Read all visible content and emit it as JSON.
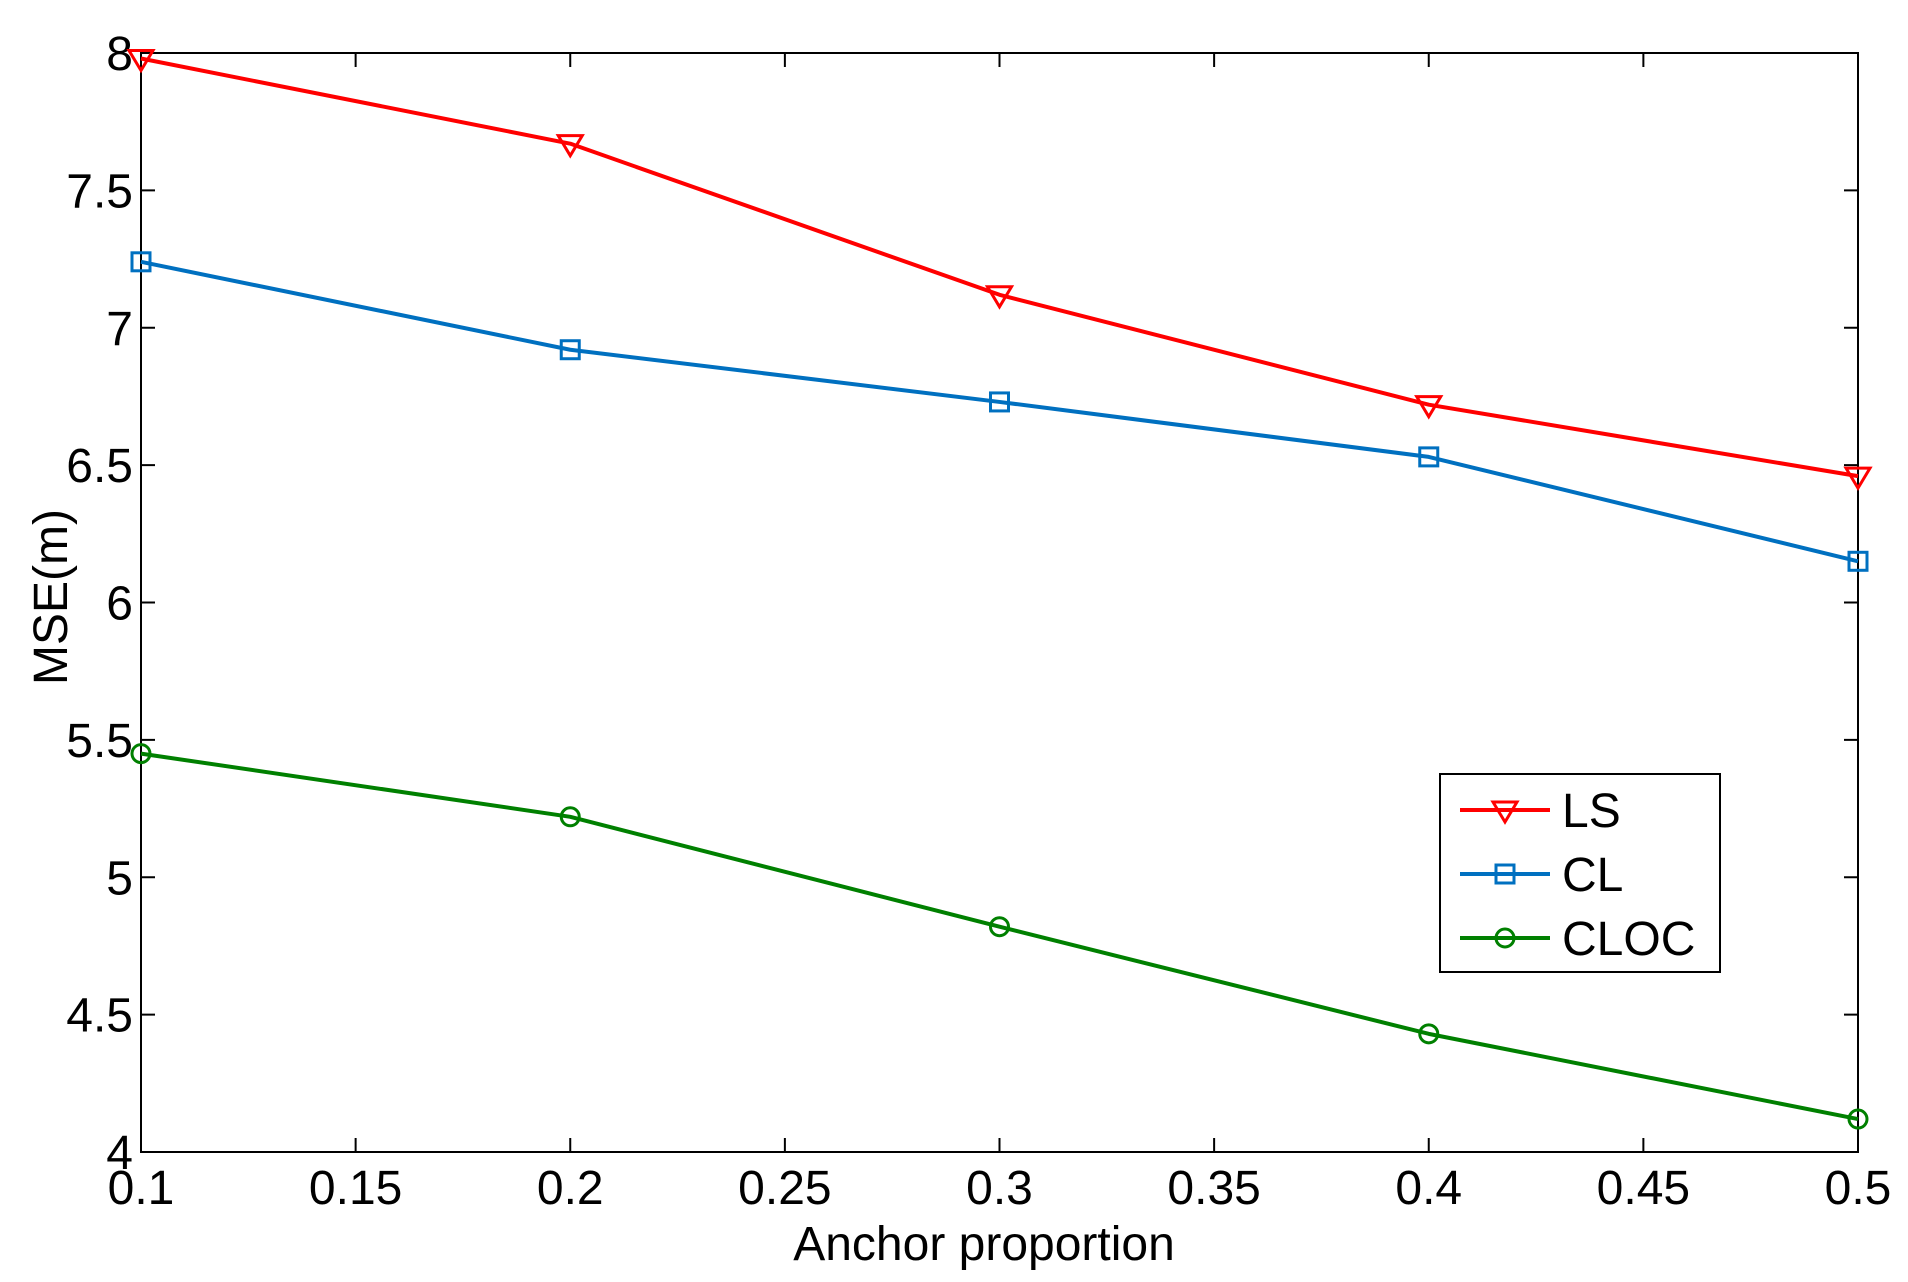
{
  "chart_data": {
    "type": "line",
    "title": "",
    "xlabel": "Anchor proportion",
    "ylabel": "MSE(m)",
    "xlim": [
      0.1,
      0.5
    ],
    "ylim": [
      4,
      8
    ],
    "xticks": [
      0.1,
      0.15,
      0.2,
      0.25,
      0.3,
      0.35,
      0.4,
      0.45,
      0.5
    ],
    "xtick_labels": [
      "0.1",
      "0.15",
      "0.2",
      "0.25",
      "0.3",
      "0.35",
      "0.4",
      "0.45",
      "0.5"
    ],
    "yticks": [
      4,
      4.5,
      5,
      5.5,
      6,
      6.5,
      7,
      7.5,
      8
    ],
    "ytick_labels": [
      "4",
      "4.5",
      "5",
      "5.5",
      "6",
      "6.5",
      "7",
      "7.5",
      "8"
    ],
    "x": [
      0.1,
      0.2,
      0.3,
      0.4,
      0.5
    ],
    "grid": false,
    "legend_position": "lower-right",
    "series": [
      {
        "name": "LS",
        "color": "#ff0000",
        "marker": "triangle-down",
        "values": [
          7.98,
          7.67,
          7.12,
          6.72,
          6.46
        ]
      },
      {
        "name": "CL",
        "color": "#0070c0",
        "marker": "square",
        "values": [
          7.24,
          6.92,
          6.73,
          6.53,
          6.15
        ]
      },
      {
        "name": "CLOC",
        "color": "#008000",
        "marker": "circle",
        "values": [
          5.45,
          5.22,
          4.82,
          4.43,
          4.12
        ]
      }
    ]
  }
}
